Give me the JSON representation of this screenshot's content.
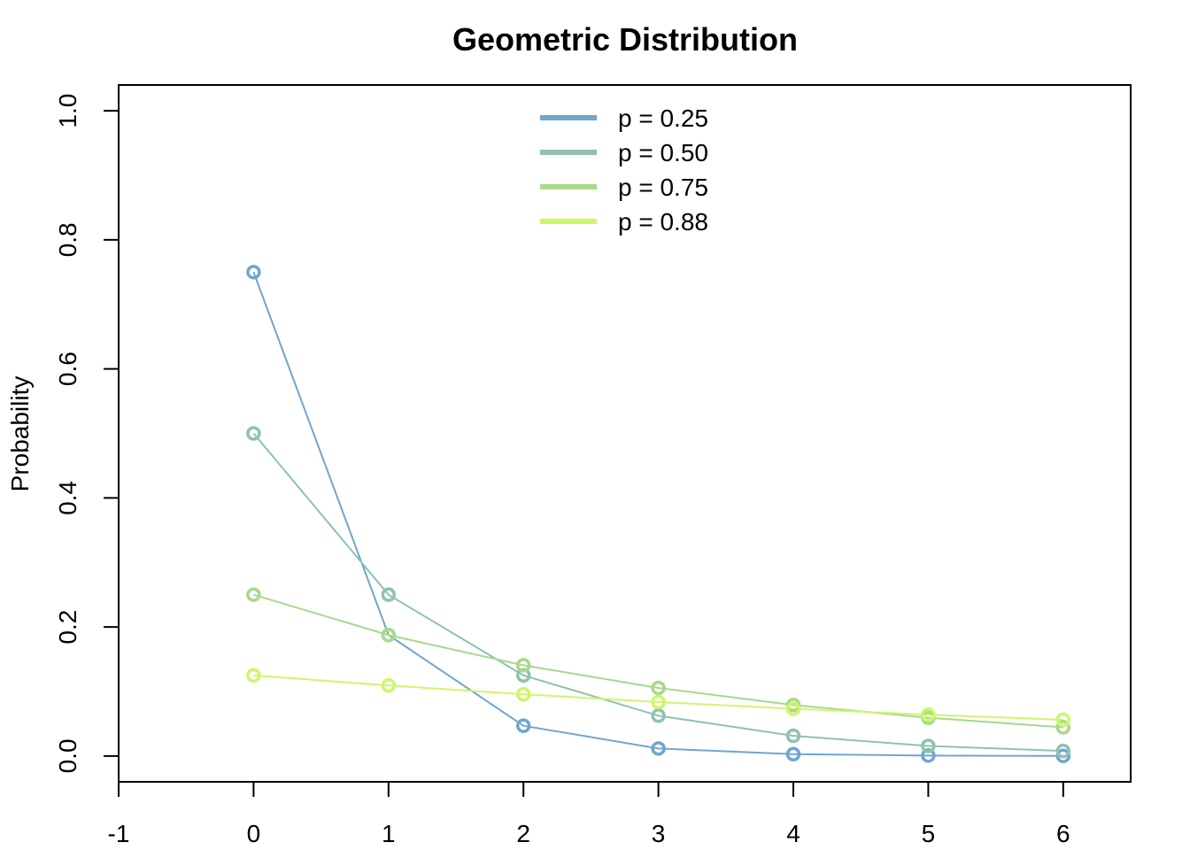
{
  "chart_data": {
    "type": "line",
    "title": "Geometric Distribution",
    "xlabel": "",
    "ylabel": "Probability",
    "xlim": [
      -1,
      6.5
    ],
    "ylim": [
      -0.04,
      1.04
    ],
    "x_ticks": [
      -1,
      0,
      1,
      2,
      3,
      4,
      5,
      6
    ],
    "x_tick_labels": [
      "-1",
      "0",
      "1",
      "2",
      "3",
      "4",
      "5",
      "6"
    ],
    "y_ticks": [
      0.0,
      0.2,
      0.4,
      0.6,
      0.8,
      1.0
    ],
    "y_tick_labels": [
      "0.0",
      "0.2",
      "0.4",
      "0.6",
      "0.8",
      "1.0"
    ],
    "grid": false,
    "legend_position": "top-center",
    "x": [
      0,
      1,
      2,
      3,
      4,
      5,
      6
    ],
    "series": [
      {
        "name": "p = 0.25",
        "color": "#6fa6cf",
        "values": [
          0.75,
          0.1875,
          0.0469,
          0.0117,
          0.0029,
          0.0007,
          0.0002
        ]
      },
      {
        "name": "p = 0.50",
        "color": "#8fc2b0",
        "values": [
          0.5,
          0.25,
          0.125,
          0.0625,
          0.0313,
          0.0156,
          0.0078
        ]
      },
      {
        "name": "p = 0.75",
        "color": "#a8d98a",
        "values": [
          0.25,
          0.1875,
          0.1406,
          0.1055,
          0.0791,
          0.0593,
          0.0445
        ]
      },
      {
        "name": "p = 0.88",
        "color": "#ccf76a",
        "values": [
          0.125,
          0.1094,
          0.0957,
          0.0837,
          0.0733,
          0.0641,
          0.0561
        ]
      }
    ]
  }
}
